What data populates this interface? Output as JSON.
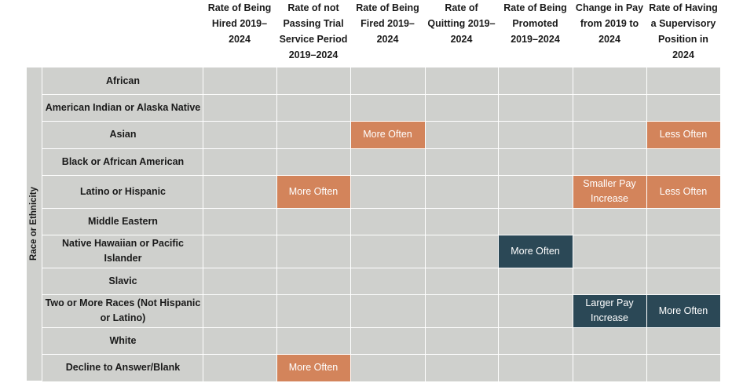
{
  "chart_data": {
    "type": "heatmap",
    "title": "",
    "row_axis_label": "Race or Ethnicity",
    "columns": [
      "Rate of Being Hired 2019–2024",
      "Rate of not Passing Trial Service Period 2019–2024",
      "Rate of Being Fired 2019–2024",
      "Rate of Quitting 2019–2024",
      "Rate of Being Promoted 2019–2024",
      "Change in Pay from 2019 to 2024",
      "Rate of Having a Supervisory Position in 2024"
    ],
    "column_header_lines": [
      [
        "Rate of Being",
        "Hired 2019–",
        "2024"
      ],
      [
        "Rate of not",
        "Passing Trial",
        "Service Period",
        "2019–2024"
      ],
      [
        "Rate of Being",
        "Fired 2019–",
        "2024"
      ],
      [
        "Rate of",
        "Quitting 2019–",
        "2024"
      ],
      [
        "Rate of Being",
        "Promoted",
        "2019–2024"
      ],
      [
        "Change in Pay",
        "from 2019 to",
        "2024"
      ],
      [
        "Rate of Having",
        "a Supervisory",
        "Position in",
        "2024"
      ]
    ],
    "rows": [
      "African",
      "American Indian or Alaska Native",
      "Asian",
      "Black or African American",
      "Latino or Hispanic",
      "Middle Eastern",
      "Native Hawaiian or Pacific Islander",
      "Slavic",
      "Two or More Races (Not Hispanic or Latino)",
      "White",
      "Decline to Answer/Blank"
    ],
    "row_label_lines": [
      [
        "African"
      ],
      [
        "American Indian or Alaska Native"
      ],
      [
        "Asian"
      ],
      [
        "Black or African American"
      ],
      [
        "Latino or Hispanic"
      ],
      [
        "Middle Eastern"
      ],
      [
        "Native Hawaiian or Pacific",
        "Islander"
      ],
      [
        "Slavic"
      ],
      [
        "Two or More Races (Not Hispanic",
        "or Latino)"
      ],
      [
        "White"
      ],
      [
        "Decline to Answer/Blank"
      ]
    ],
    "cells": [
      {
        "row": 2,
        "col": 2,
        "label": "More Often",
        "direction": "unfavorable"
      },
      {
        "row": 2,
        "col": 6,
        "label": "Less Often",
        "direction": "unfavorable"
      },
      {
        "row": 4,
        "col": 1,
        "label": "More Often",
        "direction": "unfavorable"
      },
      {
        "row": 4,
        "col": 5,
        "label": "Smaller Pay Increase",
        "direction": "unfavorable"
      },
      {
        "row": 4,
        "col": 6,
        "label": "Less Often",
        "direction": "unfavorable"
      },
      {
        "row": 6,
        "col": 4,
        "label": "More Often",
        "direction": "favorable"
      },
      {
        "row": 8,
        "col": 5,
        "label": "Larger Pay Increase",
        "direction": "favorable"
      },
      {
        "row": 8,
        "col": 6,
        "label": "More Often",
        "direction": "favorable"
      },
      {
        "row": 10,
        "col": 1,
        "label": "More Often",
        "direction": "unfavorable"
      }
    ],
    "colors": {
      "neutral": "#cfd0cd",
      "unfavorable": "#d3845b",
      "favorable": "#2b4856",
      "gridline": "#ffffff"
    },
    "grid": true
  }
}
